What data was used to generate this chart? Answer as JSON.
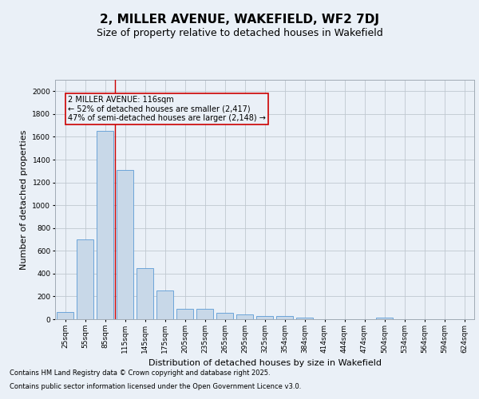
{
  "title": "2, MILLER AVENUE, WAKEFIELD, WF2 7DJ",
  "subtitle": "Size of property relative to detached houses in Wakefield",
  "xlabel": "Distribution of detached houses by size in Wakefield",
  "ylabel": "Number of detached properties",
  "categories": [
    "25sqm",
    "55sqm",
    "85sqm",
    "115sqm",
    "145sqm",
    "175sqm",
    "205sqm",
    "235sqm",
    "265sqm",
    "295sqm",
    "325sqm",
    "354sqm",
    "384sqm",
    "414sqm",
    "444sqm",
    "474sqm",
    "504sqm",
    "534sqm",
    "564sqm",
    "594sqm",
    "624sqm"
  ],
  "values": [
    65,
    700,
    1650,
    1310,
    450,
    255,
    90,
    90,
    55,
    40,
    30,
    25,
    15,
    0,
    0,
    0,
    15,
    0,
    0,
    0,
    0
  ],
  "bar_color": "#c8d8e8",
  "bar_edge_color": "#5b9bd5",
  "grid_color": "#c0c8d0",
  "background_color": "#eaf0f7",
  "vline_color": "#cc0000",
  "vline_x_index": 3,
  "annotation_line1": "2 MILLER AVENUE: 116sqm",
  "annotation_line2": "← 52% of detached houses are smaller (2,417)",
  "annotation_line3": "47% of semi-detached houses are larger (2,148) →",
  "annotation_box_color": "#cc0000",
  "ylim": [
    0,
    2100
  ],
  "yticks": [
    0,
    200,
    400,
    600,
    800,
    1000,
    1200,
    1400,
    1600,
    1800,
    2000
  ],
  "footer_line1": "Contains HM Land Registry data © Crown copyright and database right 2025.",
  "footer_line2": "Contains public sector information licensed under the Open Government Licence v3.0.",
  "title_fontsize": 11,
  "subtitle_fontsize": 9,
  "tick_fontsize": 6.5,
  "ylabel_fontsize": 8,
  "xlabel_fontsize": 8,
  "annotation_fontsize": 7,
  "footer_fontsize": 6
}
